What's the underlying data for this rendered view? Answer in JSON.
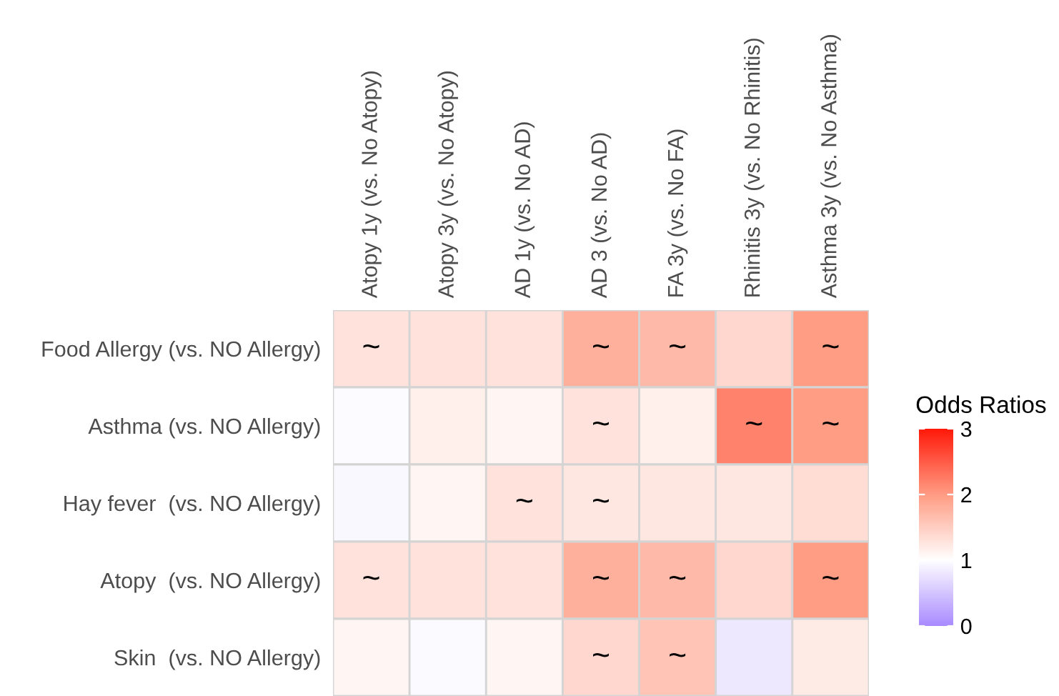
{
  "chart_data": {
    "type": "heatmap",
    "clabel": "Odds Ratios",
    "categories": [
      "Atopy 1y (vs. No Atopy)",
      "Atopy 3y (vs. No Atopy)",
      "AD 1y (vs. No AD)",
      "AD 3 (vs. No AD)",
      "FA 3y (vs. No FA)",
      "Rhinitis 3y (vs. No Rhinitis)",
      "Asthma 3y (vs. No Asthma)"
    ],
    "y_categories": [
      "Food Allergy (vs. NO Allergy)",
      "Asthma (vs. NO Allergy)",
      "Hay fever  (vs. NO Allergy)",
      "Atopy  (vs. NO Allergy)",
      "Skin  (vs. NO Allergy)"
    ],
    "cells": [
      [
        1.3,
        1.3,
        1.3,
        1.8,
        1.7,
        1.4,
        2.0
      ],
      [
        0.97,
        1.15,
        1.1,
        1.3,
        1.15,
        2.2,
        2.0
      ],
      [
        0.94,
        1.1,
        1.3,
        1.25,
        1.25,
        1.25,
        1.35
      ],
      [
        1.3,
        1.3,
        1.3,
        1.8,
        1.7,
        1.4,
        2.0
      ],
      [
        1.1,
        0.96,
        1.1,
        1.4,
        1.6,
        0.8,
        1.2
      ]
    ],
    "cell_labels": [
      [
        "~",
        null,
        null,
        "~",
        "~",
        null,
        "~"
      ],
      [
        null,
        null,
        null,
        "~",
        null,
        "~",
        "~"
      ],
      [
        null,
        null,
        "~",
        "~",
        null,
        null,
        null
      ],
      [
        "~",
        null,
        null,
        "~",
        "~",
        null,
        "~"
      ],
      [
        null,
        null,
        null,
        "~",
        "~",
        null,
        null
      ]
    ],
    "clim": [
      0,
      3
    ],
    "cticks": [
      0,
      1,
      2,
      3
    ]
  }
}
